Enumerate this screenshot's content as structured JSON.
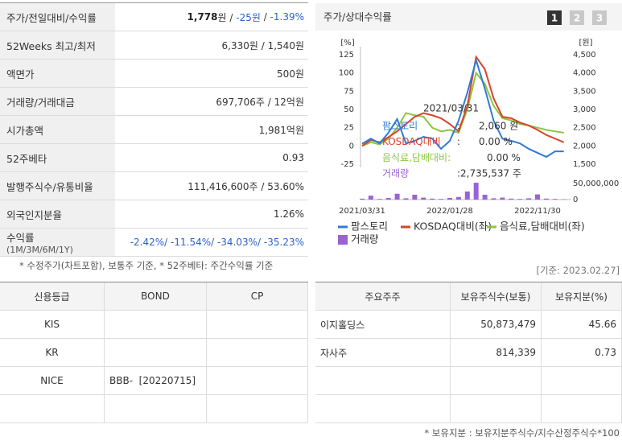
{
  "summary_table": {
    "rows": [
      {
        "label": "주가/전일대비/수익률",
        "value_parts": [
          {
            "text": "1,778",
            "style": "bold"
          },
          {
            "text": "원 / ",
            "style": "plain"
          },
          {
            "text": "-25원",
            "style": "blue"
          },
          {
            "text": " / ",
            "style": "plain"
          },
          {
            "text": "-1.39%",
            "style": "blue"
          }
        ]
      },
      {
        "label": "52Weeks 최고/최저",
        "value_parts": [
          {
            "text": "6,330원 / 1,540원",
            "style": "plain"
          }
        ]
      },
      {
        "label": "액면가",
        "value_parts": [
          {
            "text": "500원",
            "style": "plain"
          }
        ]
      },
      {
        "label": "거래량/거래대금",
        "value_parts": [
          {
            "text": "697,706주 / 12억원",
            "style": "plain"
          }
        ]
      },
      {
        "label": "시가총액",
        "value_parts": [
          {
            "text": "1,981억원",
            "style": "plain"
          }
        ]
      },
      {
        "label": "52주베타",
        "value_parts": [
          {
            "text": "0.93",
            "style": "plain"
          }
        ]
      },
      {
        "label": "발행주식수/유통비율",
        "value_parts": [
          {
            "text": "111,416,600주 / 53.60%",
            "style": "plain"
          }
        ]
      },
      {
        "label": "외국인지분율",
        "value_parts": [
          {
            "text": "1.26%",
            "style": "plain"
          }
        ]
      },
      {
        "label": "수익률",
        "label_sub": "(1M/3M/6M/1Y)",
        "value_parts": [
          {
            "text": "-2.42%/ -11.54%/ -34.03%/ -35.23%",
            "style": "blue"
          }
        ]
      }
    ],
    "footnote": "* 수정주가(차트포함), 보통주 기준, * 52주베타: 주간수익률 기준"
  },
  "chart_data": {
    "type": "line",
    "title": "주가/상대수익률",
    "tabs": [
      "1",
      "2",
      "3"
    ],
    "y_label": "[%]",
    "y2_label": "[원]",
    "categories": [
      "2021/03/31",
      null,
      null,
      null,
      null,
      null,
      null,
      null,
      null,
      null,
      "2022/01/28",
      null,
      null,
      null,
      null,
      null,
      null,
      null,
      null,
      null,
      "2022/11/30",
      null,
      null,
      null
    ],
    "ylim": [
      -30,
      135
    ],
    "yticks": [
      -25,
      0,
      25,
      50,
      75,
      100,
      125
    ],
    "y2lim": [
      1400,
      4700
    ],
    "y2ticks": [
      {
        "value": 1500,
        "label": "1,500"
      },
      {
        "value": 2000,
        "label": "2,000"
      },
      {
        "value": 2500,
        "label": "2,500"
      },
      {
        "value": 3000,
        "label": "3,000"
      },
      {
        "value": 3500,
        "label": "3,500"
      },
      {
        "value": 4000,
        "label": "4,000"
      },
      {
        "value": 4500,
        "label": "4,500"
      }
    ],
    "volume_lim": [
      0,
      55000000
    ],
    "volume_ticks": [
      0,
      {
        "value": 50000000,
        "label": "50,000,000"
      }
    ],
    "series": [
      {
        "name": "팜스토리",
        "color": "#2f7ad6",
        "axis": "y2",
        "values": [
          2060,
          2200,
          2070,
          2360,
          2735,
          2070,
          2140,
          2250,
          2200,
          1920,
          2140,
          2690,
          3460,
          4350,
          3570,
          2690,
          2200,
          2140,
          2070,
          1920,
          1810,
          1700,
          1850,
          1850
        ]
      },
      {
        "name": "KOSDAQ대비(좌)",
        "color": "#d9432b",
        "values": [
          0,
          8,
          5,
          12,
          20,
          30,
          40,
          45,
          42,
          38,
          30,
          20,
          55,
          122,
          105,
          65,
          40,
          38,
          32,
          28,
          22,
          15,
          10,
          5
        ]
      },
      {
        "name": "음식료,담배대비(좌)",
        "color": "#8cc63f",
        "values": [
          0,
          5,
          2,
          10,
          25,
          45,
          42,
          40,
          25,
          20,
          22,
          18,
          50,
          100,
          85,
          55,
          38,
          35,
          30,
          28,
          25,
          22,
          20,
          18
        ]
      },
      {
        "name": "거래량",
        "color": "#9a62d4",
        "type": "bar",
        "axis": "volume",
        "values": [
          2735537,
          12000000,
          2000000,
          5000000,
          18000000,
          4000000,
          15000000,
          6000000,
          3000000,
          2000000,
          5000000,
          8000000,
          25000000,
          52000000,
          15000000,
          4000000,
          6000000,
          3000000,
          2000000,
          4000000,
          16000000,
          3000000,
          2000000,
          1000000
        ]
      }
    ],
    "tooltip": {
      "date": "2021/03/31",
      "rows": [
        [
          "팜스토리",
          ":",
          "2,060 원"
        ],
        [
          "KOSDAQ대비",
          ":",
          "0.00 %"
        ],
        [
          "음식료,담배대비:",
          "0.00 %"
        ],
        [
          "거래량",
          ":2,735,537 주"
        ]
      ]
    },
    "basis": "[기준: 2023.02.27]"
  },
  "credit_table": {
    "headers": [
      "신용등급",
      "BOND",
      "CP"
    ],
    "rows": [
      [
        "KIS"
      ],
      [
        "KR"
      ],
      [
        "NICE",
        "BBB-  [20220715]"
      ],
      []
    ]
  },
  "holders_table": {
    "headers": [
      "주요주주",
      "보유주식수(보통)",
      "보유지분(%)"
    ],
    "rows": [
      [
        "이지홀딩스",
        "50,873,479",
        "45.66"
      ],
      [
        "자사주",
        "814,339",
        "0.73"
      ],
      [],
      []
    ],
    "footnote": "* 보유지분 : 보유지분주식수/지수산정주식수*100"
  }
}
